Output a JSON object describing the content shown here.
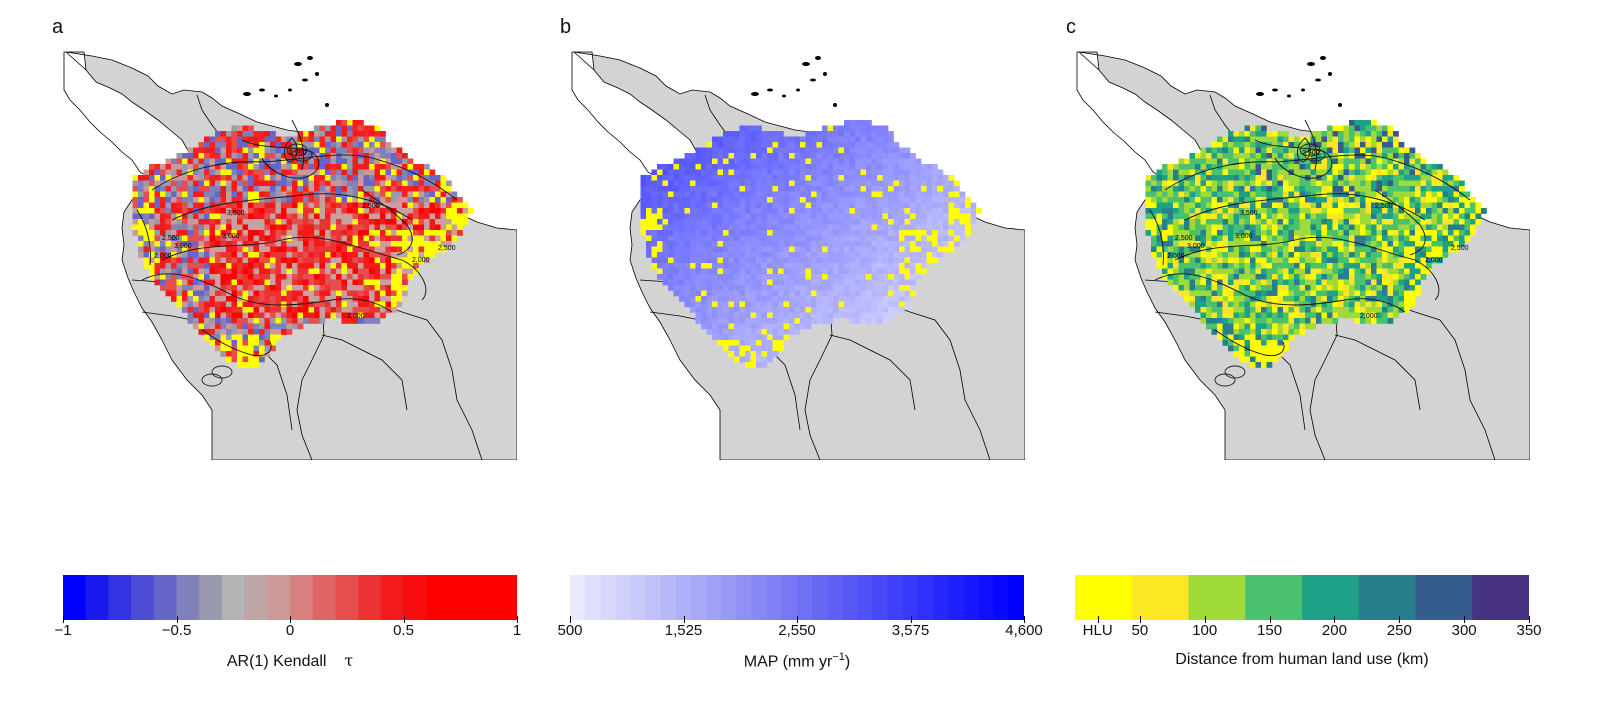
{
  "panels": [
    {
      "label": "a",
      "land_color": "#d3d3d3",
      "contour_labels": [
        "2,500",
        "3,500",
        "3,000",
        "2,500",
        "2,000",
        "2,500",
        "3,000",
        "2,500",
        "2,000",
        "2,000"
      ],
      "colorbar": {
        "colors": [
          "#0000ff",
          "#1a1aef",
          "#3333e3",
          "#4d4dd5",
          "#6666c8",
          "#8080bb",
          "#9999af",
          "#b3b3b3",
          "#bfa6a6",
          "#cc9999",
          "#d98080",
          "#e06666",
          "#e64d4d",
          "#ec3333",
          "#f21a1a",
          "#f70d0d",
          "#ff0000",
          "#ff0000",
          "#ff0000",
          "#ff0000"
        ],
        "ticks": [
          "−1",
          "−0.5",
          "0",
          "0.5",
          "1"
        ],
        "title": "AR(1) Kendall",
        "title_symbol": "τ"
      }
    },
    {
      "label": "b",
      "land_color": "#d3d3d3",
      "colorbar": {
        "colors": [
          "#e8e8ff",
          "#e0e0fe",
          "#d8d8fd",
          "#d0d0fc",
          "#c8c8fb",
          "#c0c0fa",
          "#b8b8f9",
          "#b0b0f8",
          "#a8a8f7",
          "#a0a0f6",
          "#9898f5",
          "#9090f4",
          "#8888f4",
          "#8080f4",
          "#7878f4",
          "#7070f4",
          "#6868f5",
          "#6060f6",
          "#5858f7",
          "#5050f8",
          "#4848f9",
          "#4040fa",
          "#3838fb",
          "#3030fc",
          "#2828fd",
          "#2020fe",
          "#1818ff",
          "#1010ff",
          "#0808ff",
          "#0000ff"
        ],
        "ticks": [
          "500",
          "1,525",
          "2,550",
          "3,575",
          "4,600"
        ],
        "title": "MAP (mm yr",
        "title_sup": "−1",
        "title_end": ")"
      }
    },
    {
      "label": "c",
      "land_color": "#d3d3d3",
      "contour_labels": [
        "2,500",
        "3,500",
        "3,000",
        "2,500",
        "2,000",
        "2,500",
        "3,000",
        "2,500",
        "2,000",
        "2,000"
      ],
      "colorbar": {
        "colors": [
          "#ffff00",
          "#fde725",
          "#a0da39",
          "#4ac16d",
          "#1fa187",
          "#277f8e",
          "#365c8d",
          "#46327e"
        ],
        "ticks": [
          "HLU",
          "50",
          "100",
          "150",
          "200",
          "250",
          "300",
          "350"
        ],
        "title": "Distance from human land use (km)"
      }
    }
  ]
}
